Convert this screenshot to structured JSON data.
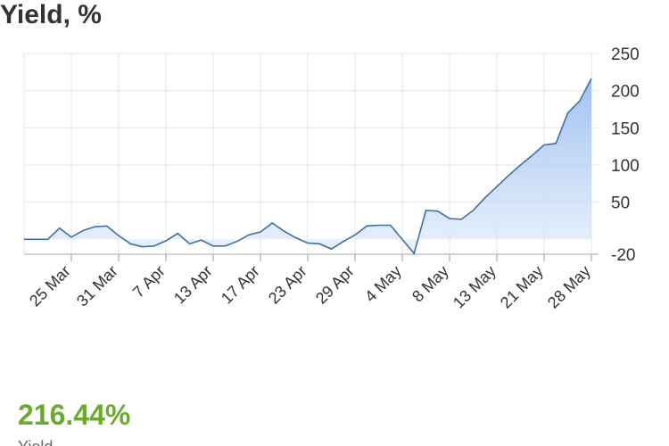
{
  "chart_data": {
    "type": "area",
    "title": "Yield, %",
    "categories": [
      null,
      null,
      null,
      null,
      "25 Mar",
      null,
      null,
      null,
      "31 Mar",
      null,
      null,
      null,
      "7 Apr",
      null,
      null,
      null,
      "13 Apr",
      null,
      null,
      null,
      "17 Apr",
      null,
      null,
      null,
      "23 Apr",
      null,
      null,
      null,
      "29 Apr",
      null,
      null,
      null,
      "4 May",
      null,
      null,
      null,
      "8 May",
      null,
      null,
      null,
      "13 May",
      null,
      null,
      null,
      "21 May",
      null,
      null,
      null,
      "28 May"
    ],
    "values": [
      0,
      0,
      0,
      15,
      3,
      12,
      17,
      18,
      5,
      -6,
      -10,
      -9,
      -2,
      8,
      -6,
      -1,
      -9,
      -9,
      -3,
      6,
      10,
      22,
      11,
      2,
      -5,
      -6,
      -13,
      -3,
      6,
      18,
      19,
      19,
      0,
      -19,
      39,
      38,
      28,
      27,
      39,
      56,
      71,
      86,
      100,
      113,
      127,
      129,
      170,
      186,
      216.44
    ],
    "color": "#3d6fa8",
    "ylim": [
      -20,
      250
    ],
    "yticks": [
      250,
      200,
      150,
      100,
      50,
      -20
    ],
    "grid": true
  },
  "summary": {
    "value": "216.44%",
    "label": "Yield"
  }
}
